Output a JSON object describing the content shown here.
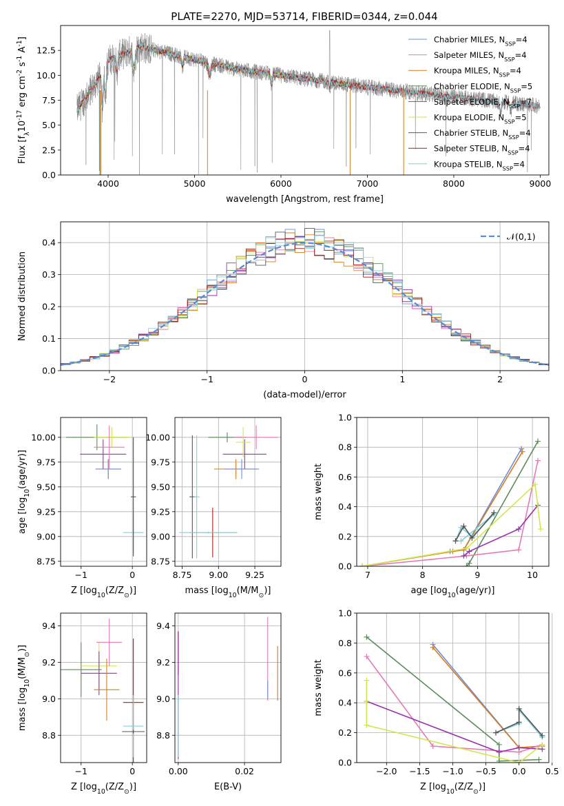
{
  "figure": {
    "title": "PLATE=2270, MJD=53714, FIBERID=0344, z=0.044"
  },
  "palette": {
    "colors": [
      "#6a8fd8",
      "#e47ab5",
      "#d97a1e",
      "#5b8a5b",
      "#9a2fb0",
      "#d2e64a",
      "#555555",
      "#b01515",
      "#7fd0d8"
    ]
  },
  "chart_data": [
    {
      "id": "spectrum",
      "type": "line",
      "title": "PLATE=2270, MJD=53714, FIBERID=0344, z=0.044",
      "xlabel": "wavelength [Angstrom, rest frame]",
      "ylabel": "Flux [f$_\\lambda$10$^{-17}$ erg cm$^{-2}$ s$^{-1}$ A$^{-1}$]",
      "xlim": [
        3450,
        9100
      ],
      "ylim": [
        0,
        15
      ],
      "xticks": [
        4000,
        5000,
        6000,
        7000,
        8000,
        9000
      ],
      "yticks": [
        0.0,
        2.5,
        5.0,
        7.5,
        10.0,
        12.5
      ],
      "grid": false,
      "legend_position": "top-right",
      "data_series": {
        "color": "gray",
        "x_range": [
          3640,
          9000
        ]
      },
      "series": [
        {
          "name": "Chabrier MILES, N$_{SSP}$=4",
          "color": "#6a8fd8",
          "x_range": [
            3640,
            7420
          ]
        },
        {
          "name": "Salpeter MILES, N$_{SSP}$=4",
          "color": "#e47ab5",
          "x_range": [
            3640,
            7420
          ]
        },
        {
          "name": "Kroupa MILES, N$_{SSP}$=4",
          "color": "#d97a1e",
          "x_range": [
            3640,
            7420
          ]
        },
        {
          "name": "Chabrier ELODIE, N$_{SSP}$=5",
          "color": "#5b8a5b",
          "x_range": [
            3640,
            6800
          ]
        },
        {
          "name": "Salpeter ELODIE, N$_{SSP}$=7",
          "color": "#9a2fb0",
          "x_range": [
            3640,
            6800
          ]
        },
        {
          "name": "Kroupa ELODIE, N$_{SSP}$=5",
          "color": "#d2e64a",
          "x_range": [
            3640,
            6800
          ]
        },
        {
          "name": "Chabrier STELIB, N$_{SSP}$=4",
          "color": "#555555",
          "x_range": [
            3640,
            8950
          ]
        },
        {
          "name": "Salpeter STELIB, N$_{SSP}$=4",
          "color": "#b01515",
          "x_range": [
            3640,
            8950
          ]
        },
        {
          "name": "Kroupa STELIB, N$_{SSP}$=4",
          "color": "#7fd0d8",
          "x_range": [
            3640,
            8950
          ]
        }
      ]
    },
    {
      "id": "residuals",
      "type": "histogram",
      "xlabel": "(data-model)/error",
      "ylabel": "Normed distribution",
      "xlim": [
        -2.5,
        2.5
      ],
      "ylim": [
        0,
        0.465
      ],
      "xticks": [
        -2,
        -1,
        0,
        1,
        2
      ],
      "yticks": [
        0.0,
        0.1,
        0.2,
        0.3,
        0.4
      ],
      "grid": true,
      "legend": [
        "$\\mathcal{N}(0,1)$"
      ],
      "legend_position": "top-right",
      "reference_curve": {
        "name": "$\\mathcal{N}(0,1)$",
        "type": "normal",
        "mean": 0,
        "sigma": 1,
        "color": "#5a8ad8"
      },
      "bin_width": 0.1,
      "series_colors": [
        "#6a8fd8",
        "#e47ab5",
        "#d97a1e",
        "#5b8a5b",
        "#9a2fb0",
        "#d2e64a",
        "#555555",
        "#b01515",
        "#7fd0d8"
      ]
    },
    {
      "id": "age_vs_Z",
      "type": "scatter",
      "xlabel": "Z [log$_{10}$($Z/Z_\\odot$)]",
      "ylabel": "age  [log$_{10}$($age/yr$)]",
      "xlim": [
        -1.4,
        0.28
      ],
      "ylim": [
        8.7,
        10.2
      ],
      "xticks": [
        -1,
        0
      ],
      "yticks": [
        8.75,
        9.0,
        9.25,
        9.5,
        9.75,
        10.0
      ],
      "grid": true,
      "errorbars": [
        {
          "x": -0.69,
          "xerr": 0.6,
          "y": 10.0,
          "yerr": 0.13,
          "color": "#5b8a5b"
        },
        {
          "x": -0.4,
          "xerr": 0.35,
          "y": 10.0,
          "yerr": 0.1,
          "color": "#d2e64a"
        },
        {
          "x": -0.57,
          "xerr": 0.45,
          "y": 9.83,
          "yerr": 0.15,
          "color": "#9a2fb0"
        },
        {
          "x": -0.47,
          "xerr": 0.25,
          "y": 9.68,
          "yerr": 0.1,
          "color": "#d97a1e"
        },
        {
          "x": -0.47,
          "xerr": 0.25,
          "y": 9.68,
          "yerr": 0.1,
          "color": "#6a8fd8"
        },
        {
          "x": -0.45,
          "xerr": 0.3,
          "y": 9.9,
          "yerr": 0.22,
          "color": "#e47ab5"
        },
        {
          "x": 0.02,
          "xerr": 0.2,
          "y": 9.04,
          "yerr": 0.2,
          "color": "#7fd0d8"
        },
        {
          "x": 0.02,
          "xerr": 0.05,
          "y": 9.4,
          "yerr": 0.6,
          "color": "#555555"
        }
      ]
    },
    {
      "id": "age_vs_mass",
      "type": "scatter",
      "xlabel": "mass [log$_{10}$($M/M_\\odot$)]",
      "ylabel": "",
      "xlim": [
        8.7,
        9.43
      ],
      "ylim": [
        8.7,
        10.2
      ],
      "xticks": [
        8.75,
        9.0,
        9.25
      ],
      "yticks": [
        8.75,
        9.0,
        9.25,
        9.5,
        9.75,
        10.0
      ],
      "grid": true,
      "errorbars": [
        {
          "x": 9.06,
          "xerr": 0.13,
          "y": 10.0,
          "yerr": 0.05,
          "color": "#5b8a5b"
        },
        {
          "x": 9.18,
          "xerr": 0.15,
          "y": 9.83,
          "yerr": 0.15,
          "color": "#9a2fb0"
        },
        {
          "x": 9.26,
          "xerr": 0.15,
          "y": 10.0,
          "yerr": 0.12,
          "color": "#e47ab5"
        },
        {
          "x": 9.12,
          "xerr": 0.15,
          "y": 9.68,
          "yerr": 0.1,
          "color": "#d97a1e"
        },
        {
          "x": 9.16,
          "xerr": 0.12,
          "y": 9.68,
          "yerr": 0.1,
          "color": "#6a8fd8"
        },
        {
          "x": 9.17,
          "xerr": 0.05,
          "y": 9.95,
          "yerr": 0.15,
          "color": "#d2e64a"
        },
        {
          "x": 8.96,
          "xerr": 0.16,
          "y": 9.04,
          "yerr": 0.25,
          "color": "#b01515"
        },
        {
          "x": 8.82,
          "xerr": 0.02,
          "y": 9.4,
          "yerr": 0.62,
          "color": "#555555"
        },
        {
          "x": 8.85,
          "xerr": 0.02,
          "y": 9.4,
          "yerr": 0.62,
          "color": "#7fd0d8"
        },
        {
          "x": 8.93,
          "xerr": 0.2,
          "y": 9.04,
          "yerr": 0.01,
          "color": "#7fd0d8"
        }
      ]
    },
    {
      "id": "mass_weight_vs_age",
      "type": "line",
      "xlabel": "age  [log$_{10}$($age/yr$)]",
      "ylabel": "mass weight",
      "xlim": [
        6.8,
        10.3
      ],
      "ylim": [
        0,
        1
      ],
      "xticks": [
        7,
        8,
        9,
        10
      ],
      "yticks": [
        0.0,
        0.2,
        0.4,
        0.6,
        0.8,
        1.0
      ],
      "grid": true,
      "series": [
        {
          "color": "#6a8fd8",
          "x": [
            6.9,
            8.5,
            8.75,
            9.8
          ],
          "y": [
            0.0,
            0.1,
            0.11,
            0.79
          ]
        },
        {
          "color": "#d97a1e",
          "x": [
            6.9,
            8.55,
            8.75,
            9.82
          ],
          "y": [
            0.0,
            0.1,
            0.11,
            0.77
          ]
        },
        {
          "color": "#5b8a5b",
          "x": [
            8.8,
            8.85,
            10.1
          ],
          "y": [
            0.0,
            0.02,
            0.84
          ]
        },
        {
          "color": "#e47ab5",
          "x": [
            6.9,
            8.8,
            9.75,
            10.1
          ],
          "y": [
            0.0,
            0.07,
            0.11,
            0.71
          ]
        },
        {
          "color": "#9a2fb0",
          "x": [
            8.75,
            8.85,
            9.75,
            10.1
          ],
          "y": [
            0.07,
            0.1,
            0.25,
            0.41
          ]
        },
        {
          "color": "#d2e64a",
          "x": [
            6.9,
            8.8,
            10.05,
            10.15
          ],
          "y": [
            0.0,
            0.12,
            0.55,
            0.25
          ]
        },
        {
          "color": "#7fd0d8",
          "x": [
            8.6,
            8.7,
            8.9,
            9.3,
            8.7
          ],
          "y": [
            0.17,
            0.26,
            0.2,
            0.35,
            0.17
          ]
        },
        {
          "color": "#555555",
          "x": [
            8.6,
            8.75,
            8.9,
            9.3
          ],
          "y": [
            0.17,
            0.27,
            0.19,
            0.36
          ]
        }
      ]
    },
    {
      "id": "mass_vs_Z",
      "type": "scatter",
      "xlabel": "Z [log$_{10}$($Z/Z_\\odot$)]",
      "ylabel": "mass [log$_{10}$($M/M_\\odot$)]",
      "xlim": [
        -1.4,
        0.28
      ],
      "ylim": [
        8.65,
        9.47
      ],
      "xticks": [
        -1,
        0
      ],
      "yticks": [
        8.8,
        9.0,
        9.2,
        9.4
      ],
      "grid": true,
      "errorbars": [
        {
          "x": -1.0,
          "xerr": 0.4,
          "y": 9.16,
          "yerr": 0.15,
          "color": "#5b8a5b"
        },
        {
          "x": -0.65,
          "xerr": 0.35,
          "y": 9.18,
          "yerr": 0.13,
          "color": "#d2e64a"
        },
        {
          "x": -0.65,
          "xerr": 0.35,
          "y": 9.14,
          "yerr": 0.12,
          "color": "#9a2fb0"
        },
        {
          "x": -0.45,
          "xerr": 0.25,
          "y": 9.31,
          "yerr": 0.13,
          "color": "#e47ab5"
        },
        {
          "x": -0.5,
          "xerr": 0.25,
          "y": 9.05,
          "yerr": 0.17,
          "color": "#d97a1e"
        },
        {
          "x": 0.02,
          "xerr": 0.2,
          "y": 8.98,
          "yerr": 0.35,
          "color": "#b01515"
        },
        {
          "x": 0.02,
          "xerr": 0.2,
          "y": 8.85,
          "yerr": 0.17,
          "color": "#7fd0d8"
        },
        {
          "x": 0.02,
          "xerr": 0.22,
          "y": 8.82,
          "yerr": 0.01,
          "color": "#555555"
        }
      ]
    },
    {
      "id": "mass_vs_ebv",
      "type": "scatter",
      "xlabel": "E(B-V)",
      "ylabel": "",
      "xlim": [
        -0.001,
        0.031
      ],
      "ylim": [
        8.65,
        9.47
      ],
      "xticks": [
        0.0,
        0.02
      ],
      "yticks": [
        8.8,
        9.0,
        9.2,
        9.4
      ],
      "grid": true,
      "errorbars": [
        {
          "x": 0.0,
          "y": 9.25,
          "yerr": 0.12,
          "color": "#b01515"
        },
        {
          "x": 0.0,
          "y": 9.02,
          "yerr": 0.35,
          "color": "#9a2fb0"
        },
        {
          "x": 0.0,
          "y": 8.85,
          "yerr": 0.17,
          "color": "#7fd0d8"
        },
        {
          "x": 0.027,
          "y": 9.22,
          "yerr": 0.23,
          "color": "#e47ab5"
        },
        {
          "x": 0.027,
          "y": 9.05,
          "yerr": 0.05,
          "color": "#6a8fd8"
        },
        {
          "x": 0.03,
          "y": 9.14,
          "yerr": 0.15,
          "color": "#d97a1e"
        }
      ]
    },
    {
      "id": "mass_weight_vs_Z",
      "type": "line",
      "xlabel": "Z [log$_{10}$($Z/Z_\\odot$)]",
      "ylabel": "mass weight",
      "xlim": [
        -2.45,
        0.45
      ],
      "ylim": [
        0,
        1
      ],
      "xticks": [
        -2.0,
        -1.5,
        -1.0,
        -0.5,
        0.0,
        0.5
      ],
      "yticks": [
        0.0,
        0.2,
        0.4,
        0.6,
        0.8,
        1.0
      ],
      "grid": true,
      "series": [
        {
          "color": "#6a8fd8",
          "x": [
            -1.3,
            0.0,
            0.35
          ],
          "y": [
            0.79,
            0.1,
            0.11
          ]
        },
        {
          "color": "#d97a1e",
          "x": [
            -1.3,
            0.0,
            0.35
          ],
          "y": [
            0.77,
            0.1,
            0.11
          ]
        },
        {
          "color": "#5b8a5b",
          "x": [
            -2.3,
            -0.3,
            -0.3,
            0.3
          ],
          "y": [
            0.84,
            0.12,
            0.01,
            0.02
          ]
        },
        {
          "color": "#e47ab5",
          "x": [
            -2.3,
            -1.3,
            0.0,
            0.35
          ],
          "y": [
            0.71,
            0.11,
            0.07,
            0.12
          ]
        },
        {
          "color": "#9a2fb0",
          "x": [
            -2.3,
            -0.3,
            0.0,
            0.35
          ],
          "y": [
            0.41,
            0.07,
            0.1,
            0.09
          ]
        },
        {
          "color": "#d2e64a",
          "x": [
            -2.3,
            -2.3,
            -2.3,
            0.0,
            0.35
          ],
          "y": [
            0.55,
            0.41,
            0.25,
            0.0,
            0.12
          ]
        },
        {
          "color": "#7fd0d8",
          "x": [
            -0.35,
            0.0,
            0.0,
            0.35
          ],
          "y": [
            0.2,
            0.26,
            0.35,
            0.17
          ]
        },
        {
          "color": "#555555",
          "x": [
            -0.35,
            0.0,
            0.0,
            0.35
          ],
          "y": [
            0.2,
            0.27,
            0.36,
            0.18
          ]
        }
      ]
    }
  ]
}
